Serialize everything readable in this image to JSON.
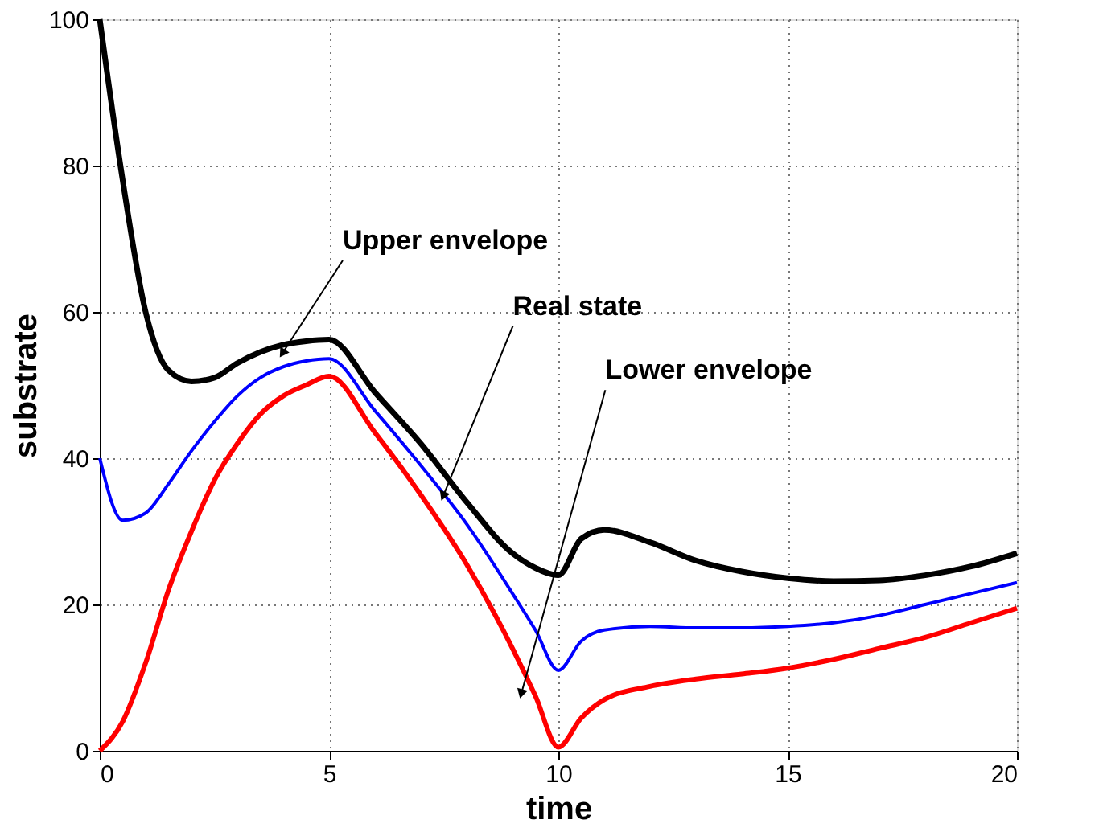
{
  "chart_data": {
    "type": "line",
    "xlabel": "time",
    "ylabel": "substrate",
    "xlim": [
      0,
      20
    ],
    "ylim": [
      0,
      100
    ],
    "xticks": [
      0,
      5,
      10,
      15,
      20
    ],
    "yticks": [
      0,
      20,
      40,
      60,
      80,
      100
    ],
    "grid": true,
    "line_style": "solid",
    "marker": "none",
    "x": [
      0,
      0.5,
      1,
      1.5,
      2,
      2.5,
      3,
      3.5,
      4,
      4.5,
      5,
      6,
      7,
      8,
      9,
      9.5,
      10,
      10.5,
      11,
      12,
      13,
      14,
      15,
      16,
      17,
      18,
      19,
      20
    ],
    "series": [
      {
        "color": "#000000",
        "values": [
          100,
          78,
          60,
          52,
          50.5,
          51,
          53,
          54.5,
          55.5,
          56,
          56.2,
          49,
          42,
          34,
          27,
          25,
          24,
          29,
          30.2,
          28.5,
          26,
          24.5,
          23.6,
          23.2,
          23.3,
          24,
          25.2,
          27
        ]
      },
      {
        "color": "#0000ff",
        "values": [
          40,
          31.5,
          32.5,
          36.5,
          41,
          45,
          48.5,
          51,
          52.5,
          53.3,
          53.6,
          46.5,
          39,
          31,
          21.5,
          16.5,
          11,
          15,
          16.5,
          17,
          16.8,
          16.8,
          17,
          17.5,
          18.5,
          20,
          21.5,
          23
        ]
      },
      {
        "color": "#ff0000",
        "values": [
          0,
          4,
          12,
          22,
          30,
          37,
          42,
          46,
          48.5,
          50,
          51.2,
          43.5,
          35,
          25.5,
          14,
          7.5,
          0.5,
          4.5,
          7,
          8.8,
          9.8,
          10.5,
          11.3,
          12.5,
          14,
          15.5,
          17.5,
          19.5
        ]
      }
    ],
    "annotations": [
      {
        "text": "Upper envelope",
        "x": 4,
        "y": 54.5
      },
      {
        "text": "Real state",
        "x": 7.5,
        "y": 35
      },
      {
        "text": "Lower envelope",
        "x": 9.2,
        "y": 8
      }
    ]
  }
}
